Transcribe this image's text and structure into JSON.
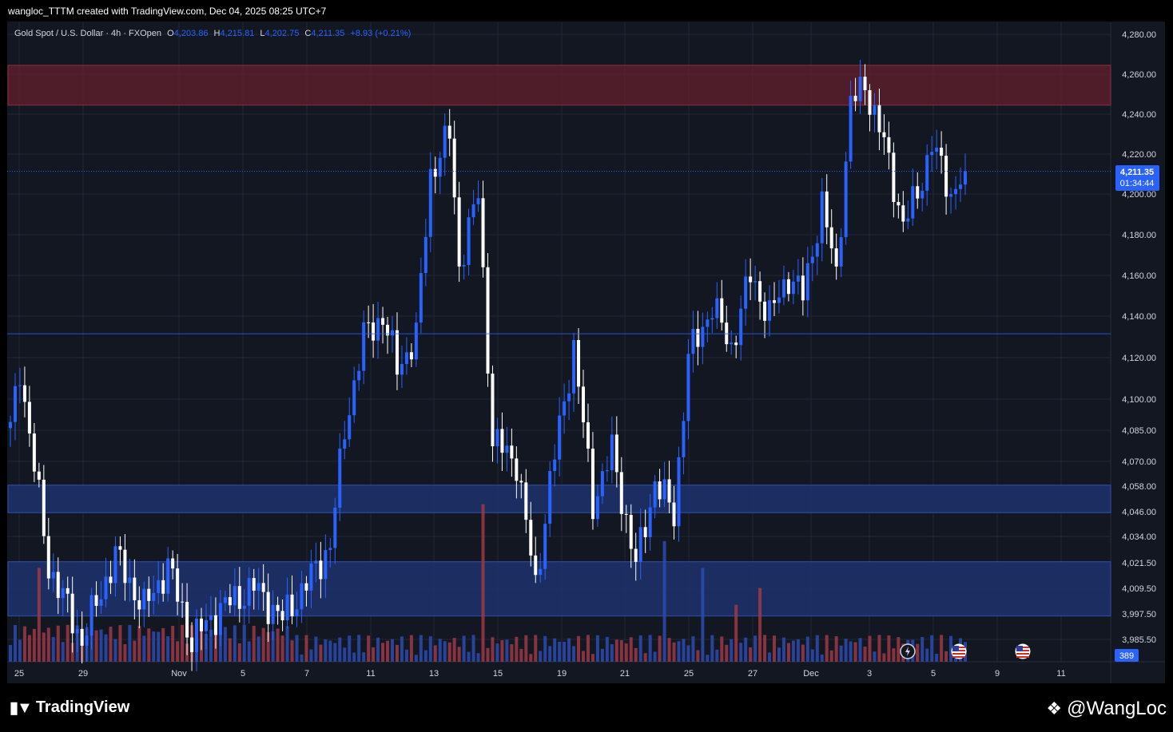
{
  "header": {
    "note": "wangloc_TTTM created with TradingView.com, Dec 04, 2025 08:25 UTC+7"
  },
  "legend": {
    "symbol": "Gold Spot / U.S. Dollar · 4h · FXOpen",
    "o_label": "O",
    "o_value": "4,203.86",
    "h_label": "H",
    "h_value": "4,215.81",
    "l_label": "L",
    "l_value": "4,202.75",
    "c_label": "C",
    "c_value": "4,211.35",
    "change": "+8.93 (+0.21%)"
  },
  "price_tag": {
    "price": "4,211.35",
    "countdown": "01:34:44"
  },
  "volume_tag": "389",
  "footer": {
    "brand": "TradingView",
    "watermark": "@WangLoc"
  },
  "colors": {
    "background": "#131722",
    "grid": "#232736",
    "bull": "#2962ff",
    "bear": "#ffffff",
    "vol_bull": "#2c4bb0",
    "vol_bear": "#9e3a45",
    "resistance_zone": "#5a1f2c",
    "support_zone": "#1e3372",
    "tag": "#2962ff"
  },
  "chart_data": {
    "type": "candlestick",
    "ylim": [
      3980,
      4283
    ],
    "y_ticks": [
      "4,280.00",
      "4,260.00",
      "4,240.00",
      "4,220.00",
      "4,200.00",
      "4,180.00",
      "4,160.00",
      "4,140.00",
      "4,120.00",
      "4,100.00",
      "4,085.00",
      "4,070.00",
      "4,058.00",
      "4,046.00",
      "4,034.00",
      "4,021.50",
      "4,009.50",
      "3,997.50",
      "3,985.50"
    ],
    "y_tick_values": [
      4280,
      4260,
      4240,
      4220,
      4200,
      4180,
      4160,
      4140,
      4120,
      4100,
      4085,
      4070,
      4058,
      4046,
      4034,
      4021.5,
      4009.5,
      3997.5,
      3985.5
    ],
    "x_ticks": [
      "25",
      "29",
      "Nov",
      "5",
      "7",
      "11",
      "13",
      "15",
      "19",
      "21",
      "25",
      "27",
      "Dec",
      "3",
      "5",
      "9",
      "11"
    ],
    "zones": [
      {
        "type": "resistance",
        "low": 4244.5,
        "high": 4264.5
      },
      {
        "type": "support",
        "low": 4045.5,
        "high": 4058.5
      },
      {
        "type": "support",
        "low": 3996.5,
        "high": 4022.0
      }
    ],
    "level_lines": [
      4131.5
    ],
    "current_price": 4211.35,
    "anchors": [
      [
        0,
        4085
      ],
      [
        2,
        4115
      ],
      [
        8,
        4020
      ],
      [
        15,
        3985
      ],
      [
        22,
        4025
      ],
      [
        28,
        4000
      ],
      [
        33,
        4020
      ],
      [
        38,
        3985
      ],
      [
        44,
        4000
      ],
      [
        51,
        4010
      ],
      [
        57,
        3995
      ],
      [
        63,
        4015
      ],
      [
        67,
        4030
      ],
      [
        70,
        4085
      ],
      [
        74,
        4130
      ],
      [
        78,
        4140
      ],
      [
        81,
        4115
      ],
      [
        85,
        4130
      ],
      [
        88,
        4210
      ],
      [
        92,
        4230
      ],
      [
        94,
        4165
      ],
      [
        98,
        4200
      ],
      [
        101,
        4080
      ],
      [
        106,
        4070
      ],
      [
        110,
        4010
      ],
      [
        113,
        4060
      ],
      [
        118,
        4125
      ],
      [
        122,
        4050
      ],
      [
        126,
        4075
      ],
      [
        131,
        4020
      ],
      [
        135,
        4060
      ],
      [
        139,
        4045
      ],
      [
        142,
        4120
      ],
      [
        147,
        4145
      ],
      [
        151,
        4125
      ],
      [
        155,
        4160
      ],
      [
        159,
        4140
      ],
      [
        163,
        4160
      ],
      [
        166,
        4150
      ],
      [
        170,
        4195
      ],
      [
        173,
        4160
      ],
      [
        176,
        4245
      ],
      [
        179,
        4255
      ],
      [
        183,
        4225
      ],
      [
        187,
        4185
      ],
      [
        190,
        4200
      ],
      [
        193,
        4225
      ],
      [
        197,
        4200
      ],
      [
        200,
        4211.35
      ]
    ],
    "volume_spikes": [
      {
        "index": 99,
        "value": 0.47
      },
      {
        "index": 137,
        "value": 0.36
      },
      {
        "index": 145,
        "value": 0.28
      },
      {
        "index": 152,
        "value": 0.17
      },
      {
        "index": 157,
        "value": 0.22
      },
      {
        "index": 6,
        "value": 0.28
      }
    ],
    "event_icons": [
      "lightning-icon",
      "us-flag-icon",
      "us-flag-icon"
    ]
  }
}
